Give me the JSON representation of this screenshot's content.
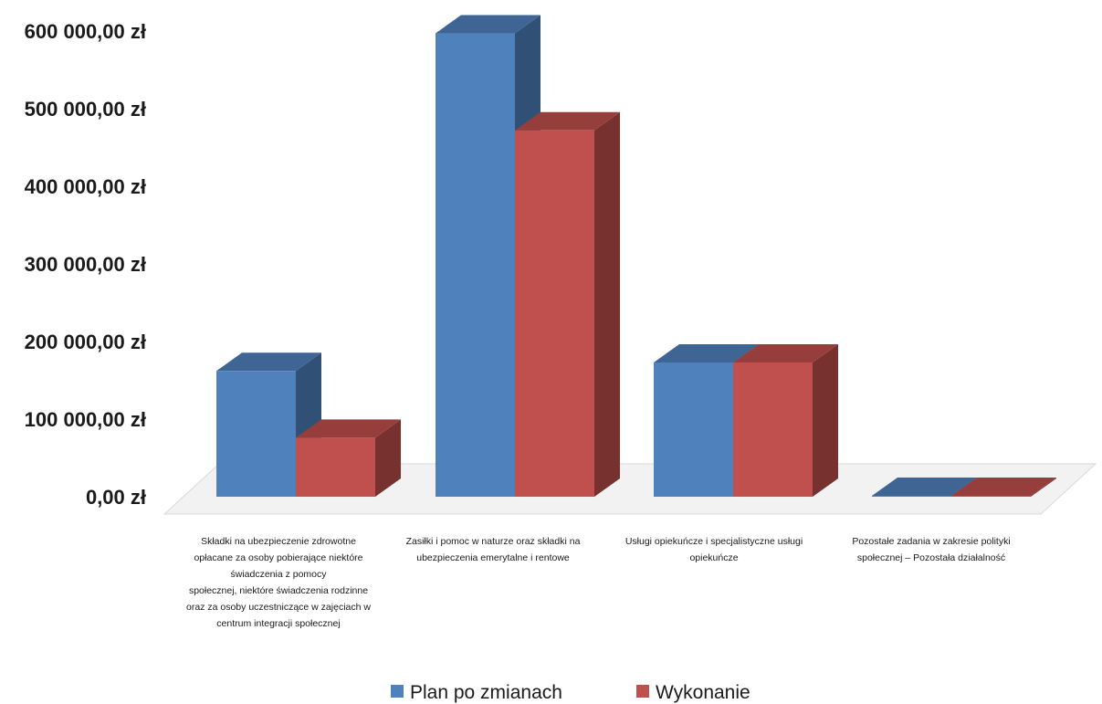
{
  "chart_data": {
    "type": "bar",
    "categories": [
      "Składki na ubezpieczenie zdrowotne opłacane za osoby pobierające niektóre świadczenia z pomocy społecznej, niektóre świadczenia rodzinne oraz za osoby uczestniczące w zajęciach w centrum integracji społecznej",
      "Zasiłki i pomoc w naturze oraz składki na ubezpieczenia emerytalne i rentowe",
      "Usługi opiekuńcze i specjalistyczne usługi opiekuńcze",
      "Pozostałe zadania w zakresie polityki społecznej – Pozostała działalność"
    ],
    "category_lines": [
      [
        "Składki na ubezpieczenie zdrowotne",
        "opłacane za osoby pobierające niektóre",
        "świadczenia z pomocy",
        "społecznej, niektóre świadczenia rodzinne",
        "oraz za osoby uczestniczące w zajęciach w",
        "centrum integracji społecznej"
      ],
      [
        "Zasiłki i pomoc w naturze oraz składki na",
        "ubezpieczenia emerytalne i rentowe"
      ],
      [
        "Usługi opiekuńcze i specjalistyczne usługi",
        "opiekuńcze"
      ],
      [
        "Pozostałe zadania w zakresie polityki",
        "społecznej – Pozostała działalność"
      ]
    ],
    "series": [
      {
        "name": "Plan po zmianach",
        "values": [
          162000,
          597000,
          173000,
          1000
        ],
        "color": "#4f81bd"
      },
      {
        "name": "Wykonanie",
        "values": [
          76000,
          472000,
          173000,
          1000
        ],
        "color": "#c0504d"
      }
    ],
    "y_ticks": [
      "0,00 zł",
      "100 000,00 zł",
      "200 000,00 zł",
      "300 000,00 zł",
      "400 000,00 zł",
      "500 000,00 zł",
      "600 000,00 zł"
    ],
    "ylim": [
      0,
      600000
    ],
    "legend_position": "bottom",
    "grid": false
  }
}
